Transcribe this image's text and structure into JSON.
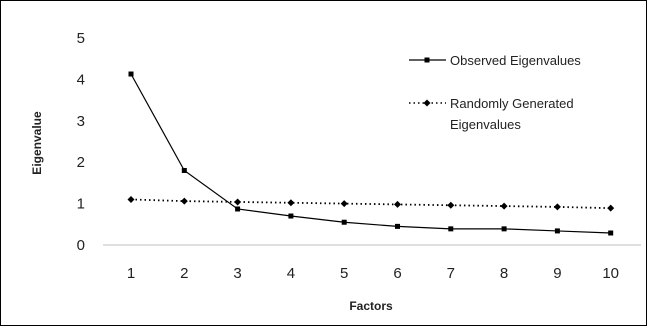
{
  "chart_data": {
    "type": "line",
    "title": "",
    "xlabel": "Factors",
    "ylabel": "Eigenvalue",
    "categories": [
      "1",
      "2",
      "3",
      "4",
      "5",
      "6",
      "7",
      "8",
      "9",
      "10"
    ],
    "ylim": [
      0,
      5
    ],
    "yticks": [
      "0",
      "1",
      "2",
      "3",
      "4",
      "5"
    ],
    "grid": false,
    "legend_position": "top-right",
    "series": [
      {
        "name": "Observed Eigenvalues",
        "values": [
          4.13,
          1.8,
          0.87,
          0.7,
          0.55,
          0.45,
          0.39,
          0.39,
          0.34,
          0.29
        ],
        "marker": "square",
        "line_style": "solid",
        "color": "#000000"
      },
      {
        "name_lines": [
          "Randomly Generated",
          "Eigenvalues"
        ],
        "values": [
          1.1,
          1.06,
          1.04,
          1.02,
          1.0,
          0.98,
          0.96,
          0.94,
          0.92,
          0.89
        ],
        "marker": "diamond",
        "line_style": "dotted",
        "color": "#000000"
      }
    ]
  }
}
